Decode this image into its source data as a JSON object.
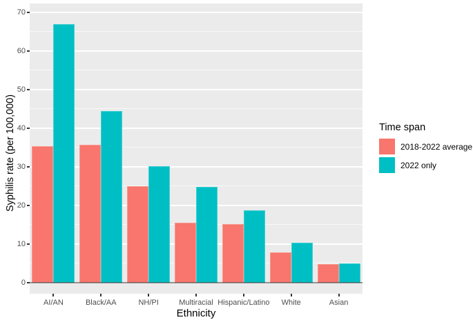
{
  "figure": {
    "background": "#ffffff",
    "panel_background": "#ebebeb",
    "grid_color": "#ffffff",
    "axis_text_color": "#4d4d4d",
    "tick_mark_color": "#333333"
  },
  "chart_data": {
    "type": "bar",
    "title": "",
    "xlabel": "Ethnicity",
    "ylabel": "Syphilis rate (per 100,000)",
    "categories": [
      "AI/AN",
      "Black/AA",
      "NH/PI",
      "Multiracial",
      "Hispanic/Latino",
      "White",
      "Asian"
    ],
    "series": [
      {
        "name": "2018-2022 average",
        "color": "#F8766D",
        "values": [
          35.4,
          35.8,
          25.0,
          15.5,
          15.2,
          7.8,
          4.8
        ]
      },
      {
        "name": "2022 only",
        "color": "#00BFC4",
        "values": [
          67.0,
          44.4,
          30.2,
          24.9,
          18.8,
          10.3,
          5.0
        ]
      }
    ],
    "ylim": [
      0,
      70
    ],
    "y_major_ticks": [
      0,
      10,
      20,
      30,
      40,
      50,
      60,
      70
    ],
    "y_minor_ticks": [
      5,
      15,
      25,
      35,
      45,
      55,
      65
    ],
    "grid": "major+minor",
    "legend_title": "Time span",
    "legend_position": "right",
    "bar_layout": "dodged"
  }
}
